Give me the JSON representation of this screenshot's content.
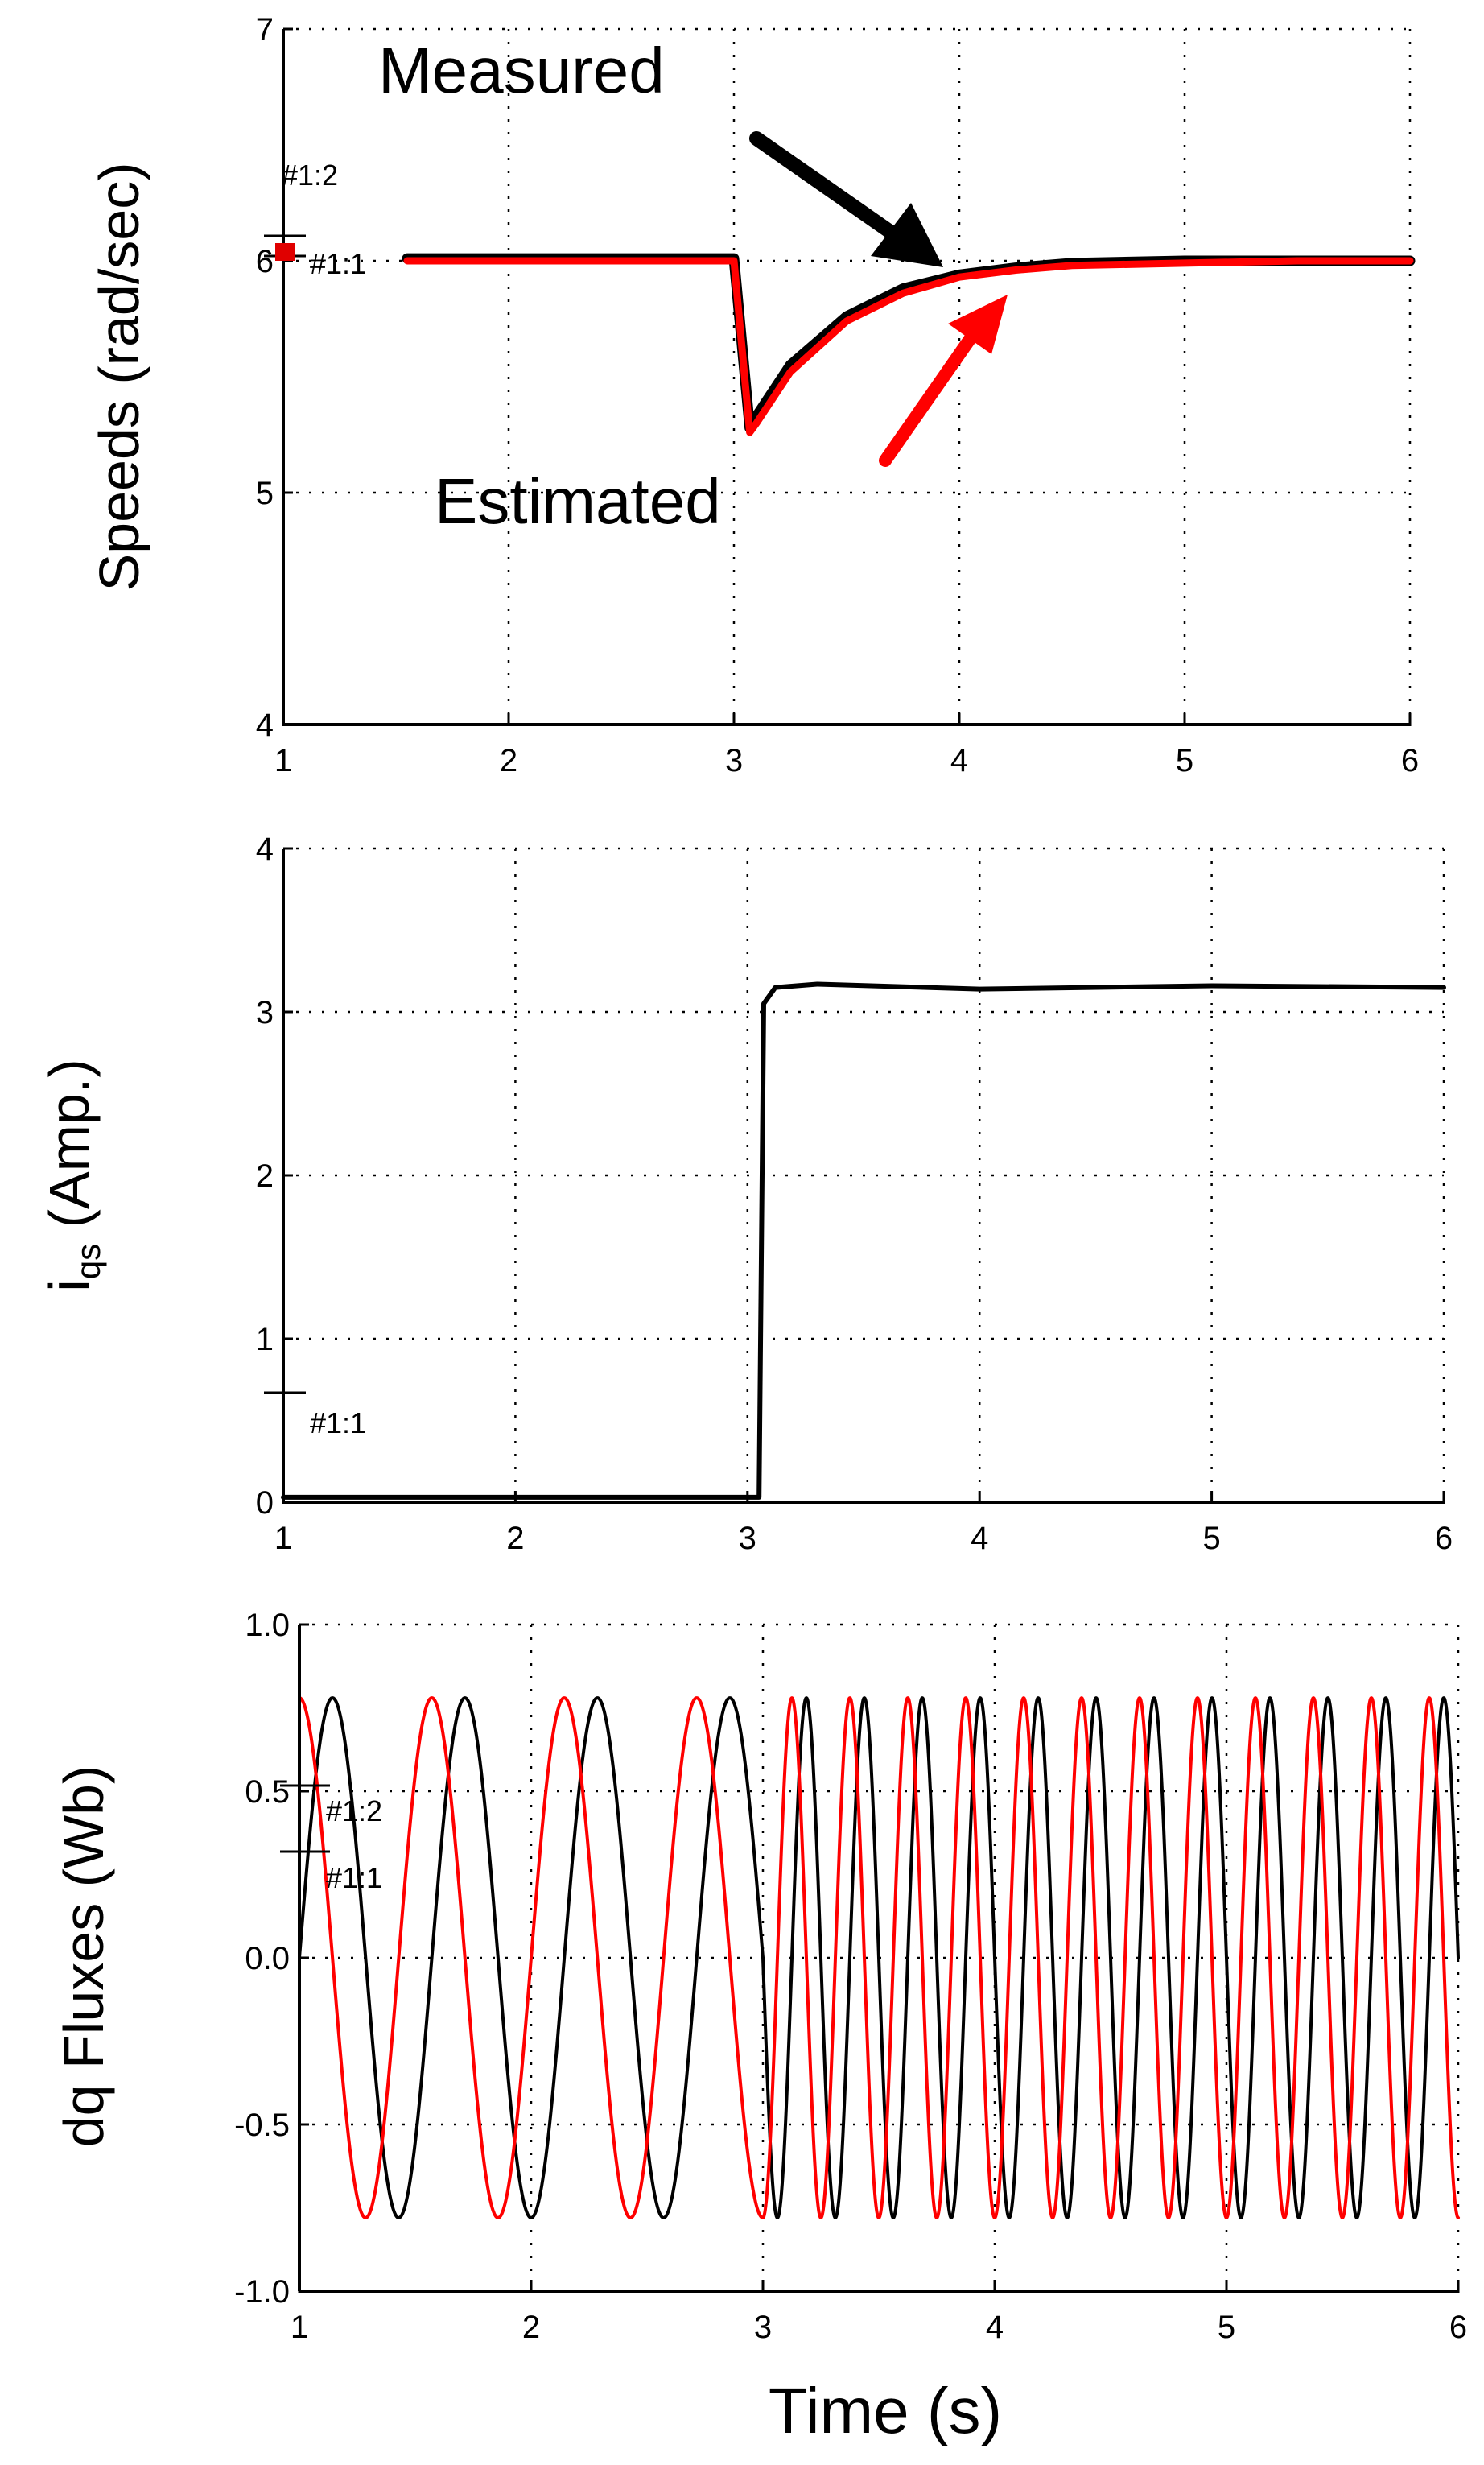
{
  "chart_data": [
    {
      "type": "line",
      "ylabel": "Speeds (rad/sec)",
      "xlim": [
        1,
        6
      ],
      "ylim": [
        4,
        7
      ],
      "x_ticks": [
        "1",
        "2",
        "3",
        "4",
        "5",
        "6"
      ],
      "y_ticks": [
        "4",
        "5",
        "6",
        "7"
      ],
      "grid": true,
      "annotations": [
        "Measured",
        "Estimated"
      ],
      "cursor_labels": [
        "#1:2",
        "#1:1"
      ],
      "series": [
        {
          "name": "Measured",
          "color": "#000000",
          "x": [
            1.55,
            3.0,
            3.07,
            3.1,
            3.25,
            3.5,
            3.75,
            4.0,
            4.25,
            4.5,
            5.0,
            5.5,
            6.0
          ],
          "y": [
            6.01,
            6.01,
            5.28,
            5.33,
            5.55,
            5.76,
            5.88,
            5.94,
            5.97,
            5.99,
            6.0,
            6.0,
            6.0
          ]
        },
        {
          "name": "Estimated",
          "color": "#ff0000",
          "x": [
            1.55,
            3.0,
            3.07,
            3.1,
            3.25,
            3.5,
            3.75,
            4.0,
            4.25,
            4.5,
            5.0,
            5.5,
            6.0
          ],
          "y": [
            6.0,
            6.0,
            5.26,
            5.3,
            5.52,
            5.74,
            5.86,
            5.93,
            5.96,
            5.98,
            5.99,
            6.0,
            6.0
          ]
        }
      ]
    },
    {
      "type": "line",
      "ylabel_main": "i",
      "ylabel_sub": "qs",
      "ylabel_rest": " (Amp.)",
      "xlim": [
        1,
        6
      ],
      "ylim": [
        0,
        4
      ],
      "x_ticks": [
        "1",
        "2",
        "3",
        "4",
        "5",
        "6"
      ],
      "y_ticks": [
        "0",
        "1",
        "2",
        "3",
        "4"
      ],
      "grid": true,
      "cursor_labels": [
        "#1:1"
      ],
      "series": [
        {
          "color": "#000000",
          "x": [
            1.0,
            3.05,
            3.07,
            3.12,
            3.3,
            4.0,
            5.0,
            6.0
          ],
          "y": [
            0.03,
            0.03,
            3.05,
            3.15,
            3.17,
            3.14,
            3.16,
            3.15
          ]
        }
      ]
    },
    {
      "type": "line",
      "ylabel": "dq Fluxes (Wb)",
      "xlabel": "Time (s)",
      "xlim": [
        1,
        6
      ],
      "ylim": [
        -1.0,
        1.0
      ],
      "x_ticks": [
        "1",
        "2",
        "3",
        "4",
        "5",
        "6"
      ],
      "y_ticks": [
        "-1.0",
        "-0.5",
        "0.0",
        "0.5",
        "1.0"
      ],
      "grid": true,
      "cursor_labels": [
        "#1:2",
        "#1:1"
      ],
      "series": [
        {
          "color": "#000000",
          "amplitude": 0.78,
          "frequency_before_3s": 1.75,
          "frequency_after_3s": 4.0,
          "phase": 0.0
        },
        {
          "color": "#ff0000",
          "amplitude": 0.78,
          "frequency_before_3s": 1.75,
          "frequency_after_3s": 4.0,
          "phase": 1.5708
        }
      ]
    }
  ]
}
